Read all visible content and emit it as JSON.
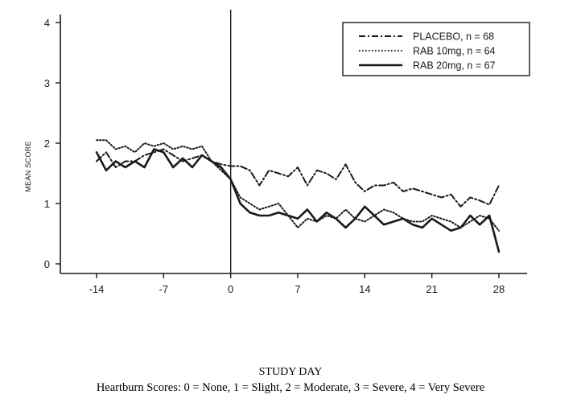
{
  "chart_data": {
    "type": "line",
    "xlabel": "STUDY DAY",
    "ylabel": "MEAN SCORE",
    "footnote": "Heartburn Scores: 0 = None, 1 = Slight, 2 = Moderate, 3 = Severe, 4 = Very Severe",
    "xlim": [
      -15,
      31
    ],
    "ylim": [
      0,
      4
    ],
    "xticks": [
      -14,
      -7,
      0,
      7,
      14,
      21,
      28
    ],
    "xtick_labels": [
      "-14",
      "-7",
      "0",
      "7",
      "14",
      "21",
      "28"
    ],
    "yticks": [
      0,
      1,
      2,
      3,
      4
    ],
    "ytick_labels": [
      "0",
      "1",
      "2",
      "3",
      "4"
    ],
    "reference_line_x": 0,
    "legend_position": "top-right",
    "series": [
      {
        "name": "PLACEBO, n = 68",
        "style": "dash-dot",
        "color": "#1a1a1a",
        "x": [
          -14,
          -13,
          -12,
          -11,
          -10,
          -9,
          -8,
          -7,
          -6,
          -5,
          -4,
          -3,
          -2,
          -1,
          0,
          1,
          2,
          3,
          4,
          5,
          6,
          7,
          8,
          9,
          10,
          11,
          12,
          13,
          14,
          15,
          16,
          17,
          18,
          19,
          20,
          21,
          22,
          23,
          24,
          25,
          26,
          27,
          28
        ],
        "y": [
          1.7,
          1.85,
          1.6,
          1.7,
          1.7,
          1.8,
          1.85,
          1.9,
          1.8,
          1.7,
          1.75,
          1.8,
          1.7,
          1.65,
          1.62,
          1.62,
          1.55,
          1.3,
          1.55,
          1.5,
          1.45,
          1.6,
          1.3,
          1.55,
          1.5,
          1.4,
          1.65,
          1.35,
          1.2,
          1.3,
          1.3,
          1.35,
          1.2,
          1.25,
          1.2,
          1.15,
          1.1,
          1.15,
          0.95,
          1.1,
          1.05,
          0.98,
          1.3
        ]
      },
      {
        "name": "RAB 10mg, n = 64",
        "style": "dotted",
        "color": "#1a1a1a",
        "x": [
          -14,
          -13,
          -12,
          -11,
          -10,
          -9,
          -8,
          -7,
          -6,
          -5,
          -4,
          -3,
          -2,
          -1,
          0,
          1,
          2,
          3,
          4,
          5,
          6,
          7,
          8,
          9,
          10,
          11,
          12,
          13,
          14,
          15,
          16,
          17,
          18,
          19,
          20,
          21,
          22,
          23,
          24,
          25,
          26,
          27,
          28
        ],
        "y": [
          2.05,
          2.05,
          1.9,
          1.95,
          1.85,
          2.0,
          1.95,
          2.0,
          1.9,
          1.95,
          1.9,
          1.95,
          1.7,
          1.55,
          1.4,
          1.1,
          1.0,
          0.9,
          0.95,
          1.0,
          0.8,
          0.6,
          0.75,
          0.7,
          0.8,
          0.75,
          0.9,
          0.75,
          0.7,
          0.8,
          0.9,
          0.85,
          0.75,
          0.7,
          0.7,
          0.8,
          0.75,
          0.7,
          0.6,
          0.7,
          0.8,
          0.75,
          0.55
        ]
      },
      {
        "name": "RAB 20mg, n = 67",
        "style": "solid",
        "color": "#1a1a1a",
        "x": [
          -14,
          -13,
          -12,
          -11,
          -10,
          -9,
          -8,
          -7,
          -6,
          -5,
          -4,
          -3,
          -2,
          -1,
          0,
          1,
          2,
          3,
          4,
          5,
          6,
          7,
          8,
          9,
          10,
          11,
          12,
          13,
          14,
          15,
          16,
          17,
          18,
          19,
          20,
          21,
          22,
          23,
          24,
          25,
          26,
          27,
          28
        ],
        "y": [
          1.85,
          1.55,
          1.7,
          1.6,
          1.7,
          1.6,
          1.9,
          1.85,
          1.6,
          1.75,
          1.6,
          1.8,
          1.7,
          1.6,
          1.4,
          1.0,
          0.85,
          0.8,
          0.8,
          0.85,
          0.8,
          0.75,
          0.9,
          0.7,
          0.85,
          0.75,
          0.6,
          0.75,
          0.95,
          0.8,
          0.65,
          0.7,
          0.75,
          0.65,
          0.6,
          0.75,
          0.65,
          0.55,
          0.6,
          0.8,
          0.65,
          0.8,
          0.2
        ]
      }
    ]
  }
}
